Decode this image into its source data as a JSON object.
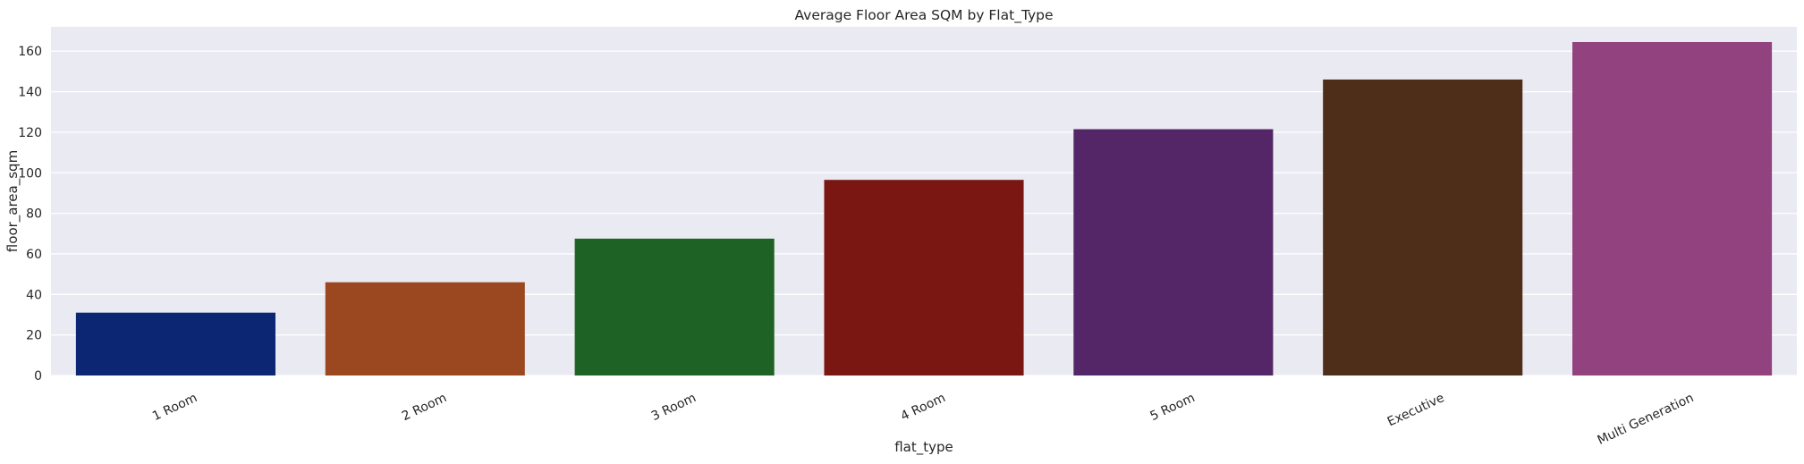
{
  "chart_data": {
    "type": "bar",
    "title": "Average Floor Area SQM by Flat_Type",
    "xlabel": "flat_type",
    "ylabel": "floor_area_sqm",
    "categories": [
      "1 Room",
      "2 Room",
      "3 Room",
      "4 Room",
      "5 Room",
      "Executive",
      "Multi Generation"
    ],
    "values": [
      31,
      46,
      67.5,
      96.5,
      121.5,
      146,
      164.5
    ],
    "colors": [
      "#0d2673",
      "#9b4820",
      "#1e6325",
      "#7a1713",
      "#552667",
      "#4f2e19",
      "#92427e"
    ],
    "ylim": [
      0,
      172
    ],
    "yticks": [
      0,
      20,
      40,
      60,
      80,
      100,
      120,
      140,
      160
    ],
    "plot_background": "#eaeaf2",
    "grid": true,
    "x_tick_rotation": -25
  }
}
